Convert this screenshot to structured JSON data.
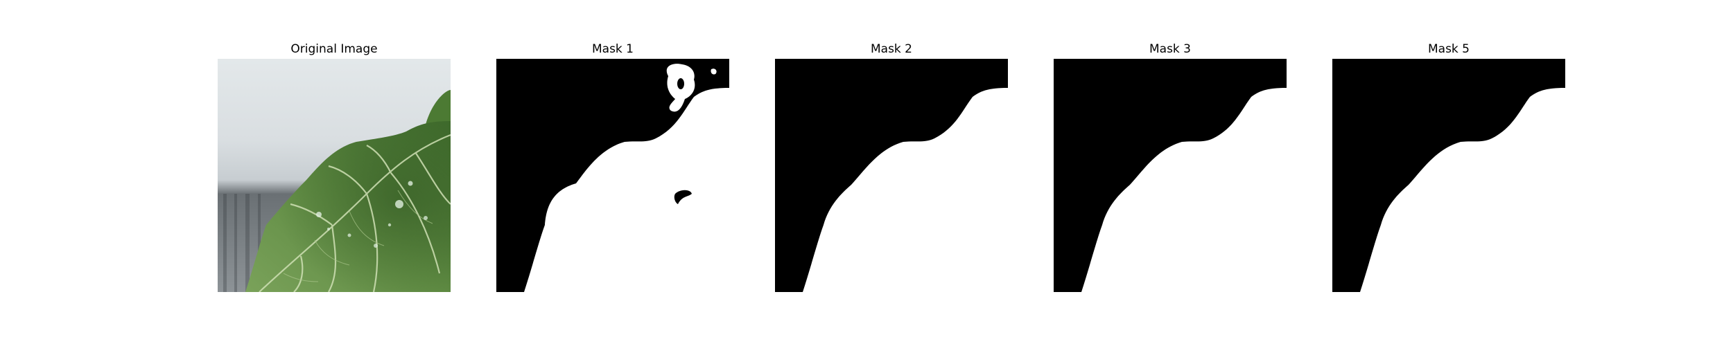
{
  "panels": [
    {
      "title": "Original Image",
      "kind": "photo"
    },
    {
      "title": "Mask 1",
      "kind": "mask"
    },
    {
      "title": "Mask 2",
      "kind": "mask"
    },
    {
      "title": "Mask 3",
      "kind": "mask"
    },
    {
      "title": "Mask 5",
      "kind": "mask"
    }
  ],
  "colors": {
    "background": "#ffffff",
    "mask_background": "#000000",
    "mask_foreground": "#ffffff",
    "leaf_green": "#5f8a44",
    "leaf_vein": "#cfe0b4",
    "backdrop_light": "#dde2e5",
    "backdrop_dark": "#5f6468"
  }
}
